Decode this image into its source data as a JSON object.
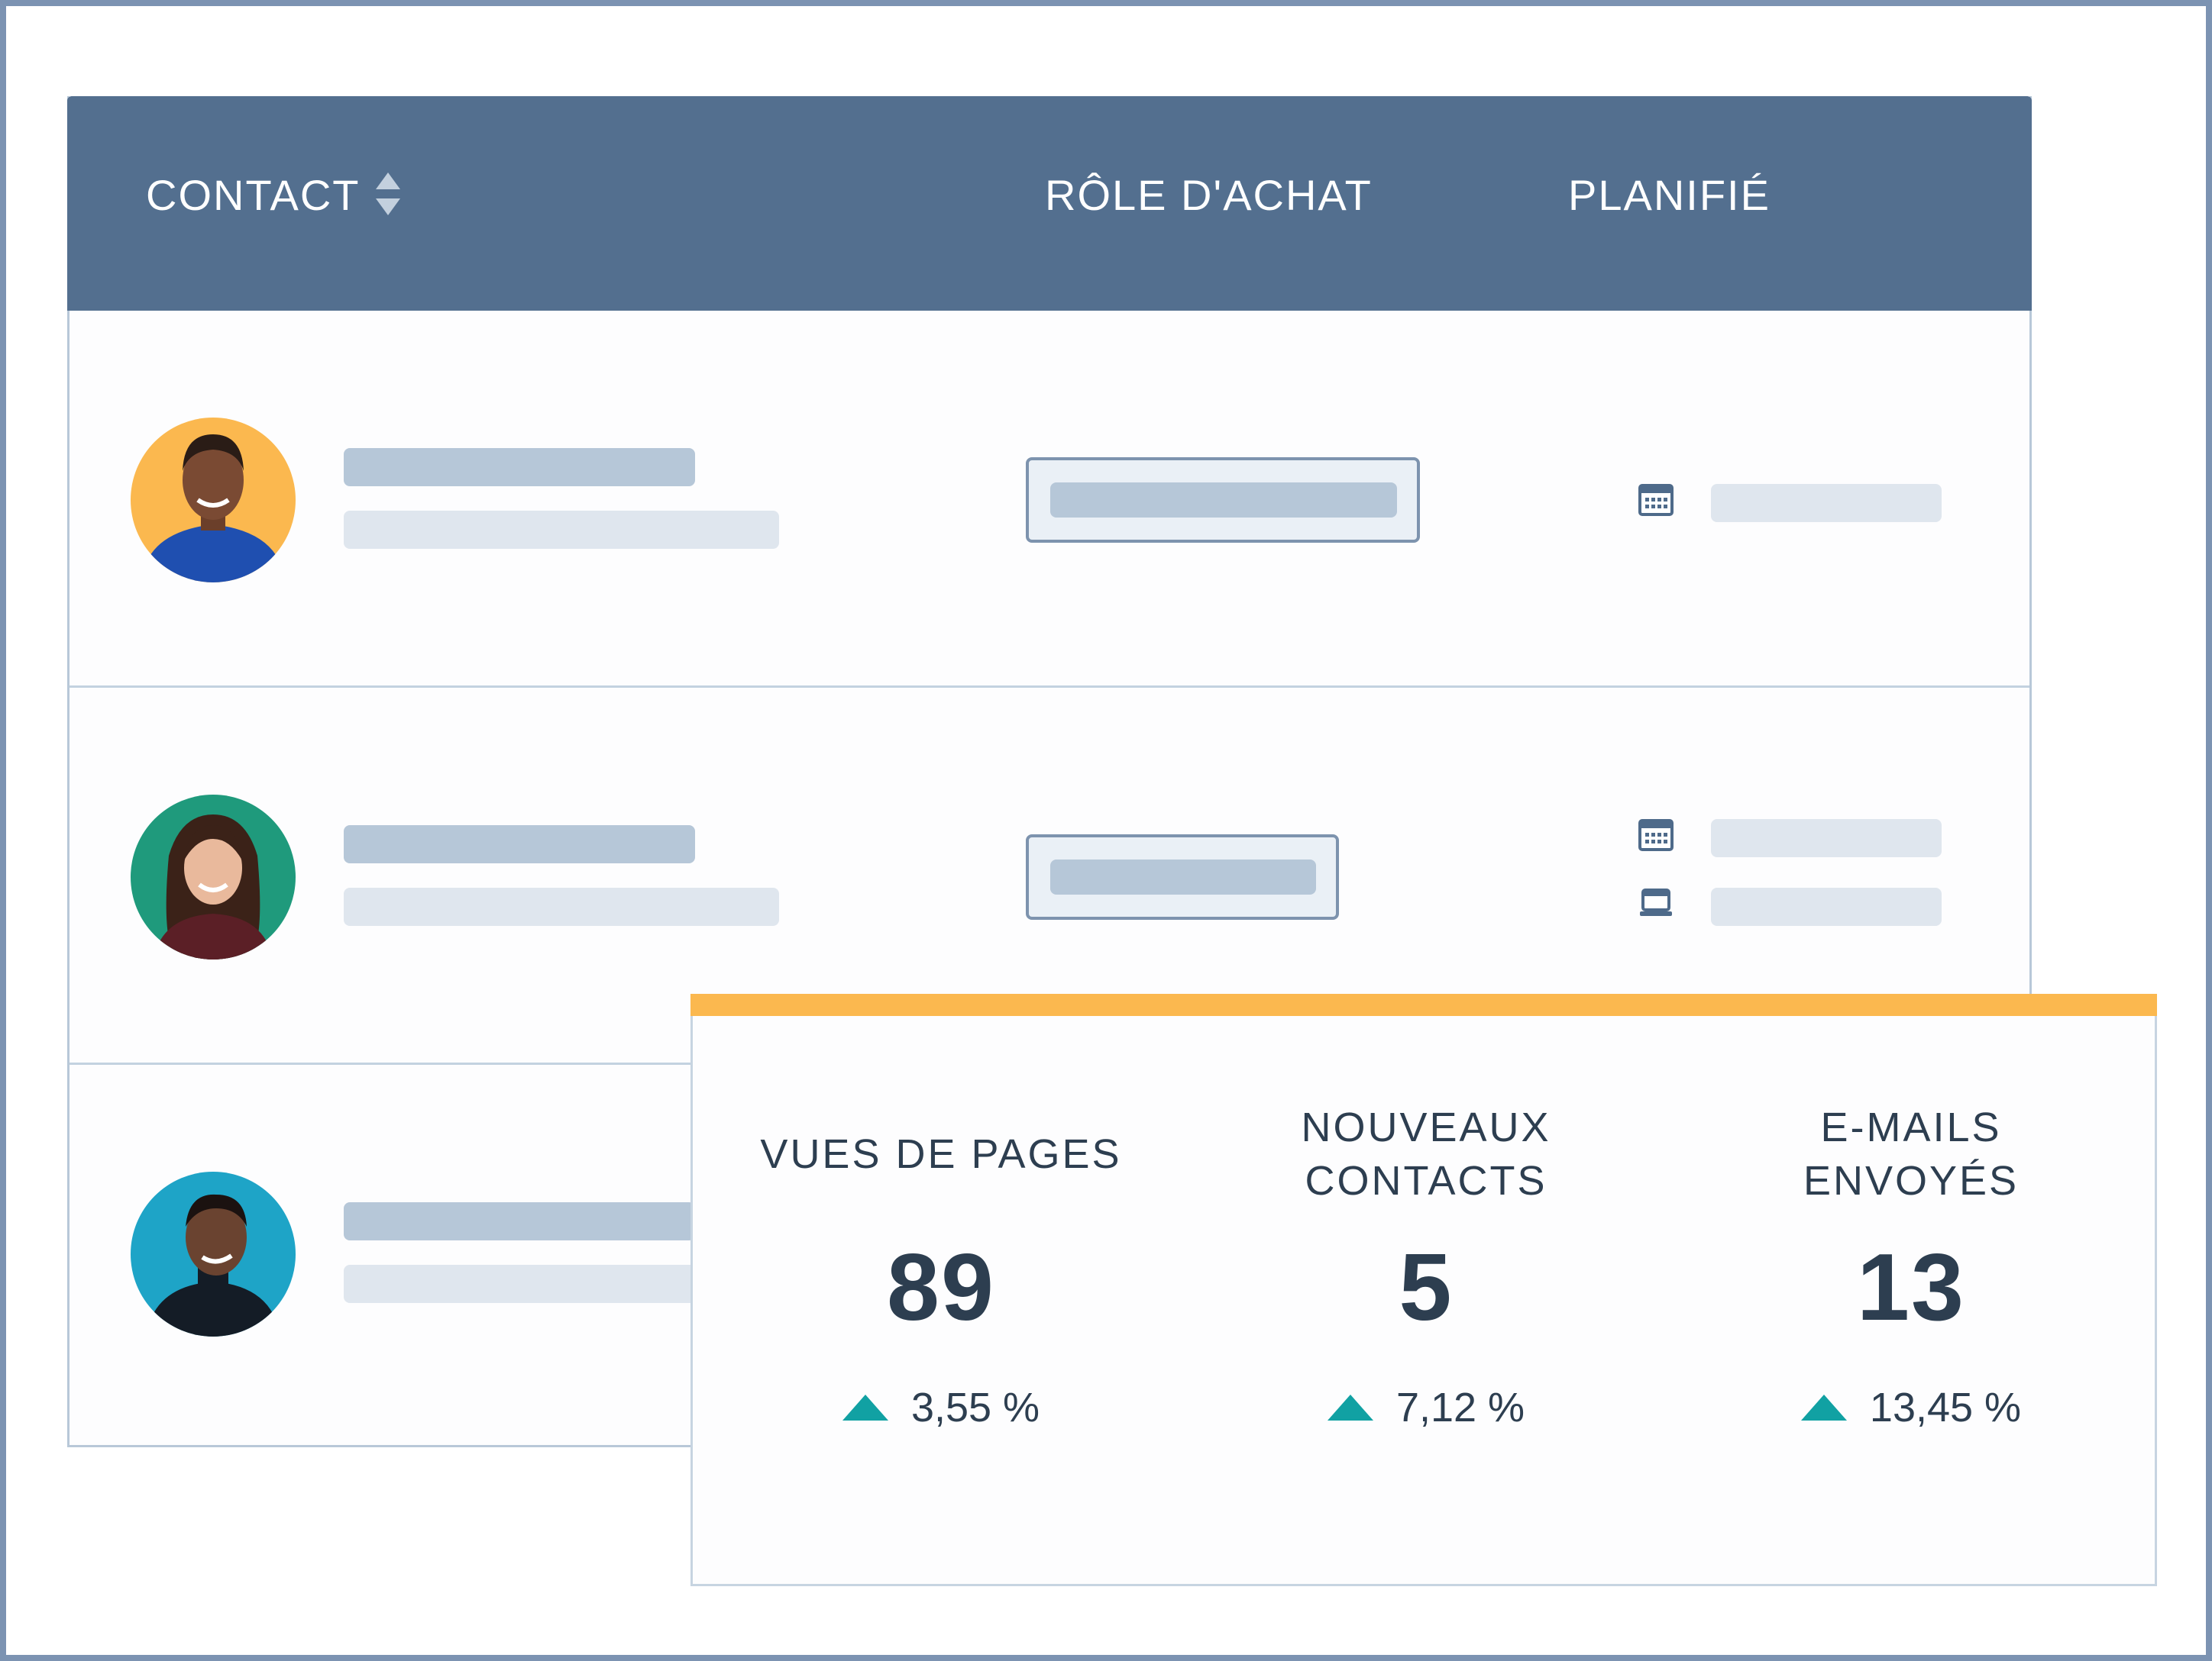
{
  "table": {
    "headers": {
      "contact": "CONTACT",
      "role": "RÔLE D'ACHAT",
      "planned": "PLANIFIÉ"
    },
    "rows": [
      {
        "avatar_bg": "#fbb84f",
        "planned_icons": [
          "calendar-icon"
        ]
      },
      {
        "avatar_bg": "#1f9a7c",
        "planned_icons": [
          "calendar-icon",
          "laptop-icon"
        ]
      },
      {
        "avatar_bg": "#1ea4c7",
        "planned_icons": []
      }
    ]
  },
  "stats": {
    "accent_color": "#fbb84f",
    "items": [
      {
        "label": "VUES DE PAGES",
        "value": "89",
        "change": "3,55 %",
        "trend": "up"
      },
      {
        "label": "NOUVEAUX\nCONTACTS",
        "value": "5",
        "change": "7,12 %",
        "trend": "up"
      },
      {
        "label": "E-MAILS\nENVOYÉS",
        "value": "13",
        "change": "13,45 %",
        "trend": "up"
      }
    ]
  },
  "colors": {
    "header_bg": "#536f8f",
    "trend_up": "#11a1a3",
    "text_dark": "#2d3e50"
  }
}
